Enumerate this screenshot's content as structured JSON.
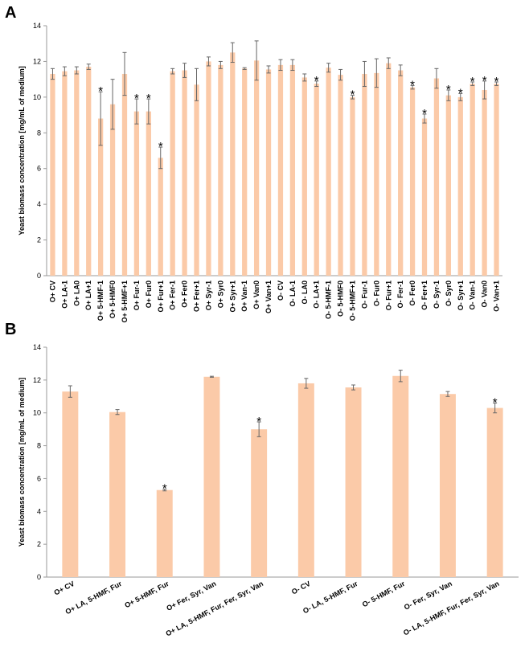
{
  "chart_data": [
    {
      "type": "bar",
      "panel_label": "A",
      "ylabel": "Yeast biomass concentration [mg/mL of medium]",
      "categories": [
        "O+ CV",
        "O+ LA-1",
        "O+ LA0",
        "O+ LA+1",
        "O+ 5-HMF-1",
        "O+ 5-HMF0",
        "O+ 5-HMF+1",
        "O+ Fur-1",
        "O+ Fur0",
        "O+ Fur+1",
        "O+ Fer-1",
        "O+ Fer0",
        "O+ Fer+1",
        "O+ Syr-1",
        "O+ Syr0",
        "O+ Syr+1",
        "O+ Van-1",
        "O+ Van0",
        "O+ Van+1",
        "O- CV",
        "O- LA-1",
        "O- LA0",
        "O- LA+1",
        "O- 5-HMF-1",
        "O- 5-HMF0",
        "O- 5-HMF+1",
        "O- Fur-1",
        "O- Fur0",
        "O- Fur+1",
        "O- Fer-1",
        "O- Fer0",
        "O- Fer+1",
        "O- Syr-1",
        "O- Syr0",
        "O- Syr+1",
        "O- Van-1",
        "O- Van0",
        "O- Van+1"
      ],
      "values": [
        11.3,
        11.45,
        11.5,
        11.7,
        8.8,
        9.6,
        11.3,
        9.2,
        9.2,
        6.6,
        11.45,
        11.5,
        10.7,
        12.0,
        11.8,
        12.5,
        11.6,
        12.05,
        11.55,
        11.8,
        11.8,
        11.1,
        10.75,
        11.65,
        11.25,
        10.0,
        11.3,
        11.35,
        11.9,
        11.5,
        10.55,
        8.8,
        11.05,
        10.1,
        10.0,
        10.75,
        10.4,
        10.75
      ],
      "errors": [
        0.3,
        0.25,
        0.2,
        0.15,
        1.5,
        1.4,
        1.2,
        0.7,
        0.7,
        0.6,
        0.15,
        0.4,
        0.9,
        0.25,
        0.2,
        0.55,
        0.05,
        1.1,
        0.2,
        0.3,
        0.3,
        0.2,
        0.15,
        0.25,
        0.3,
        0.1,
        0.7,
        0.8,
        0.3,
        0.3,
        0.1,
        0.25,
        0.55,
        0.3,
        0.2,
        0.1,
        0.5,
        0.1
      ],
      "significance": [
        null,
        null,
        null,
        null,
        "*",
        null,
        null,
        "*",
        "*",
        "*",
        null,
        null,
        null,
        null,
        null,
        null,
        null,
        null,
        null,
        null,
        null,
        null,
        "*",
        null,
        null,
        "*",
        null,
        null,
        null,
        null,
        "*",
        "*",
        null,
        "*",
        "*",
        "*",
        "*",
        "*"
      ],
      "color": "#fbcaa8",
      "ylim": [
        0,
        14
      ],
      "yticks": [
        0,
        2,
        4,
        6,
        8,
        10,
        12,
        14
      ]
    },
    {
      "type": "bar",
      "panel_label": "B",
      "ylabel": "Yeast biomass concentration [mg/mL of medium]",
      "categories": [
        "O+ CV",
        "O+ LA, 5-HMF, Fur",
        "O+ 5-HMF, Fur",
        "O+ Fer, Syr, Van",
        "O+ LA, 5-HMF, Fur, Fer, Syr, Van",
        "O- CV",
        "O- LA, 5-HMF, Fur",
        "O- 5-HMF, Fur",
        "O- Fer, Syr, Van",
        "O- LA, 5-HMF, Fur, Fer, Syr, Van"
      ],
      "values": [
        11.3,
        10.05,
        5.3,
        12.2,
        9.0,
        11.8,
        11.55,
        12.25,
        11.15,
        10.3
      ],
      "errors": [
        0.35,
        0.15,
        0.05,
        0.03,
        0.45,
        0.3,
        0.15,
        0.35,
        0.15,
        0.3
      ],
      "significance": [
        null,
        null,
        "*",
        null,
        "*",
        null,
        null,
        null,
        null,
        "*"
      ],
      "color": "#fbcaa8",
      "ylim": [
        0,
        14
      ],
      "yticks": [
        0,
        2,
        4,
        6,
        8,
        10,
        12,
        14
      ]
    }
  ]
}
